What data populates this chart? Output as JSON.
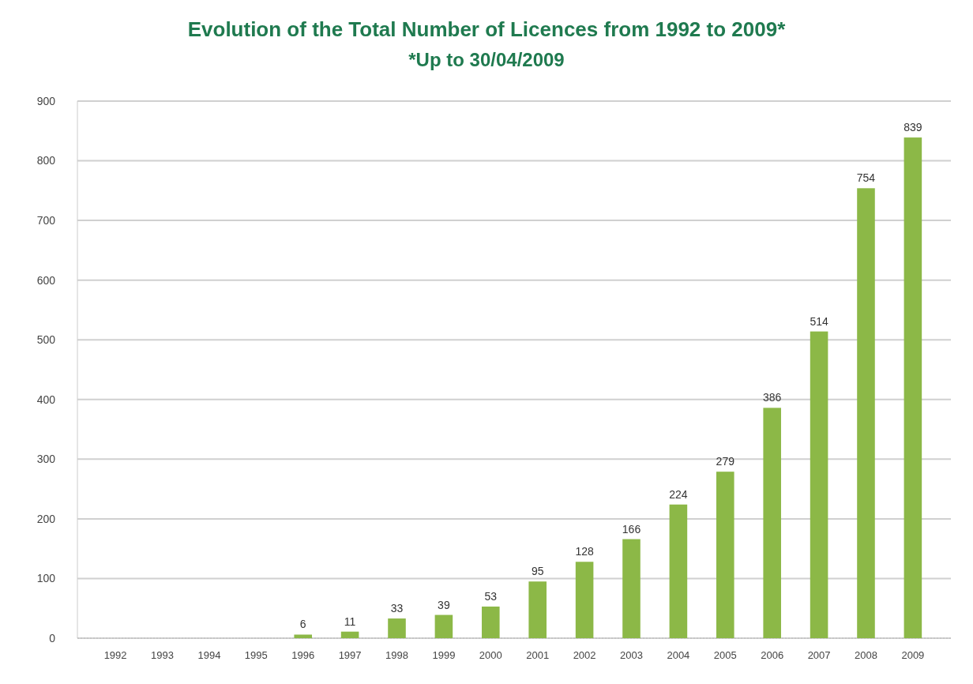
{
  "chart_data": {
    "type": "bar",
    "title": "Evolution of the Total Number of Licences from 1992 to 2009*",
    "subtitle": "*Up to 30/04/2009",
    "categories": [
      "1992",
      "1993",
      "1994",
      "1995",
      "1996",
      "1997",
      "1998",
      "1999",
      "2000",
      "2001",
      "2002",
      "2003",
      "2004",
      "2005",
      "2006",
      "2007",
      "2008",
      "2009"
    ],
    "values": [
      0,
      0,
      0,
      0,
      6,
      11,
      33,
      39,
      53,
      95,
      128,
      166,
      224,
      279,
      386,
      514,
      754,
      839
    ],
    "value_labels": [
      null,
      null,
      null,
      null,
      "6",
      "11",
      "33",
      "39",
      "53",
      "95",
      "128",
      "166",
      "224",
      "279",
      "386",
      "514",
      "754",
      "839"
    ],
    "color": "#8cb847",
    "ylim": [
      0,
      900
    ],
    "yticks": [
      0,
      100,
      200,
      300,
      400,
      500,
      600,
      700,
      800,
      900
    ],
    "grid": "y"
  }
}
